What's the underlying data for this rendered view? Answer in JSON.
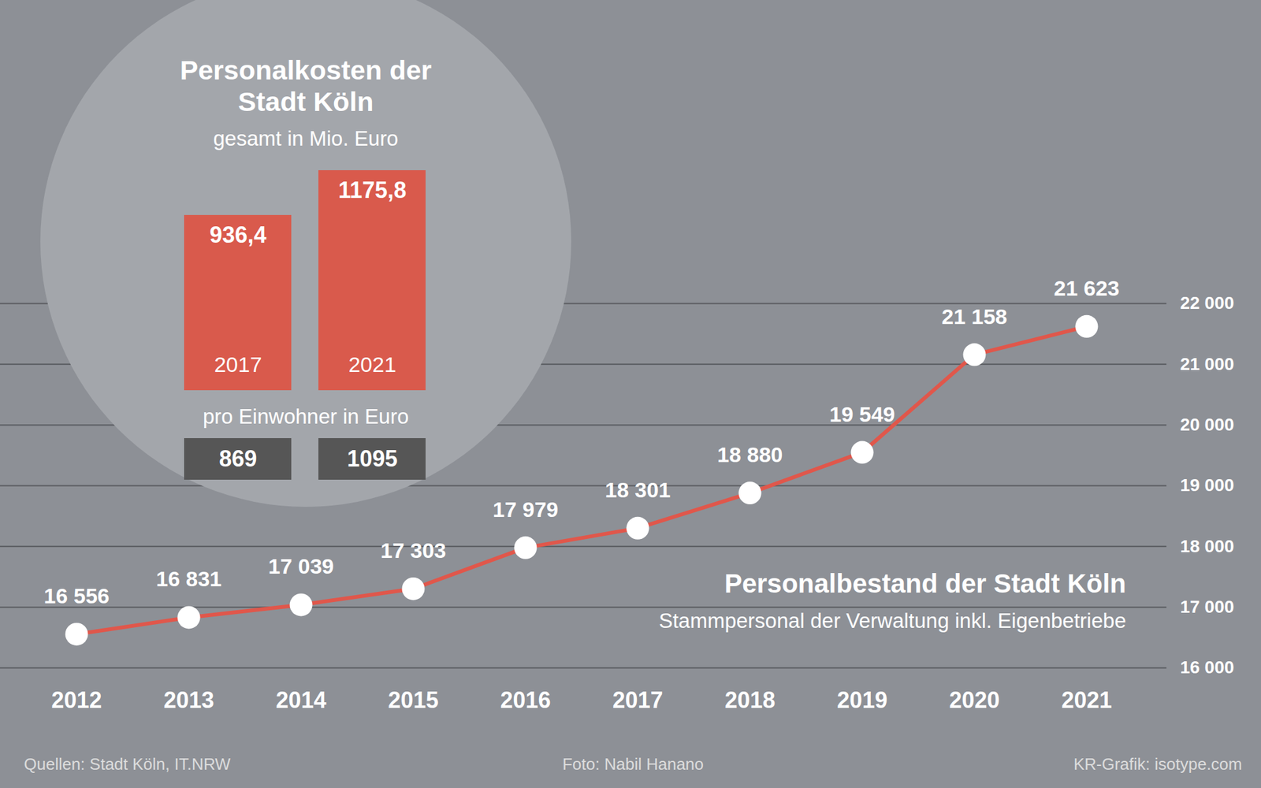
{
  "chart_data": [
    {
      "type": "line",
      "title": "Personalbestand der Stadt Köln",
      "subtitle": "Stammpersonal der Verwaltung inkl. Eigenbetriebe",
      "categories": [
        "2012",
        "2013",
        "2014",
        "2015",
        "2016",
        "2017",
        "2018",
        "2019",
        "2020",
        "2021"
      ],
      "values": [
        16556,
        16831,
        17039,
        17303,
        17979,
        18301,
        18880,
        19549,
        21158,
        21623
      ],
      "value_labels": [
        "16 556",
        "16 831",
        "17 039",
        "17 303",
        "17 979",
        "18 301",
        "18 880",
        "19 549",
        "21 158",
        "21 623"
      ],
      "data_labels": true,
      "color": "#e0574b",
      "marker": "circle",
      "ylim": [
        16000,
        22000
      ],
      "yticks": [
        {
          "value": 16000,
          "label": "16 000"
        },
        {
          "value": 17000,
          "label": "17 000"
        },
        {
          "value": 18000,
          "label": "18 000"
        },
        {
          "value": 19000,
          "label": "19 000"
        },
        {
          "value": 20000,
          "label": "20 000"
        },
        {
          "value": 21000,
          "label": "21 000"
        },
        {
          "value": 22000,
          "label": "22 000"
        }
      ],
      "grid": true
    },
    {
      "type": "bar",
      "title": "Personalkosten der Stadt Köln",
      "subtitle": "gesamt in Mio. Euro",
      "categories": [
        "2017",
        "2021"
      ],
      "values": [
        936.4,
        1175.8
      ],
      "value_labels": [
        "936,4",
        "1175,8"
      ],
      "data_labels": true,
      "color": "#d95a4c",
      "ylim": [
        0,
        1175.8
      ],
      "tick_labels": false,
      "per_inhabitant_label": "pro Einwohner in Euro",
      "per_inhabitant_values": [
        869,
        1095
      ]
    }
  ],
  "footer": {
    "sources": "Quellen: Stadt Köln, IT.NRW",
    "photo": "Foto: Nabil Hanano",
    "credit": "KR-Grafik: isotype.com"
  }
}
